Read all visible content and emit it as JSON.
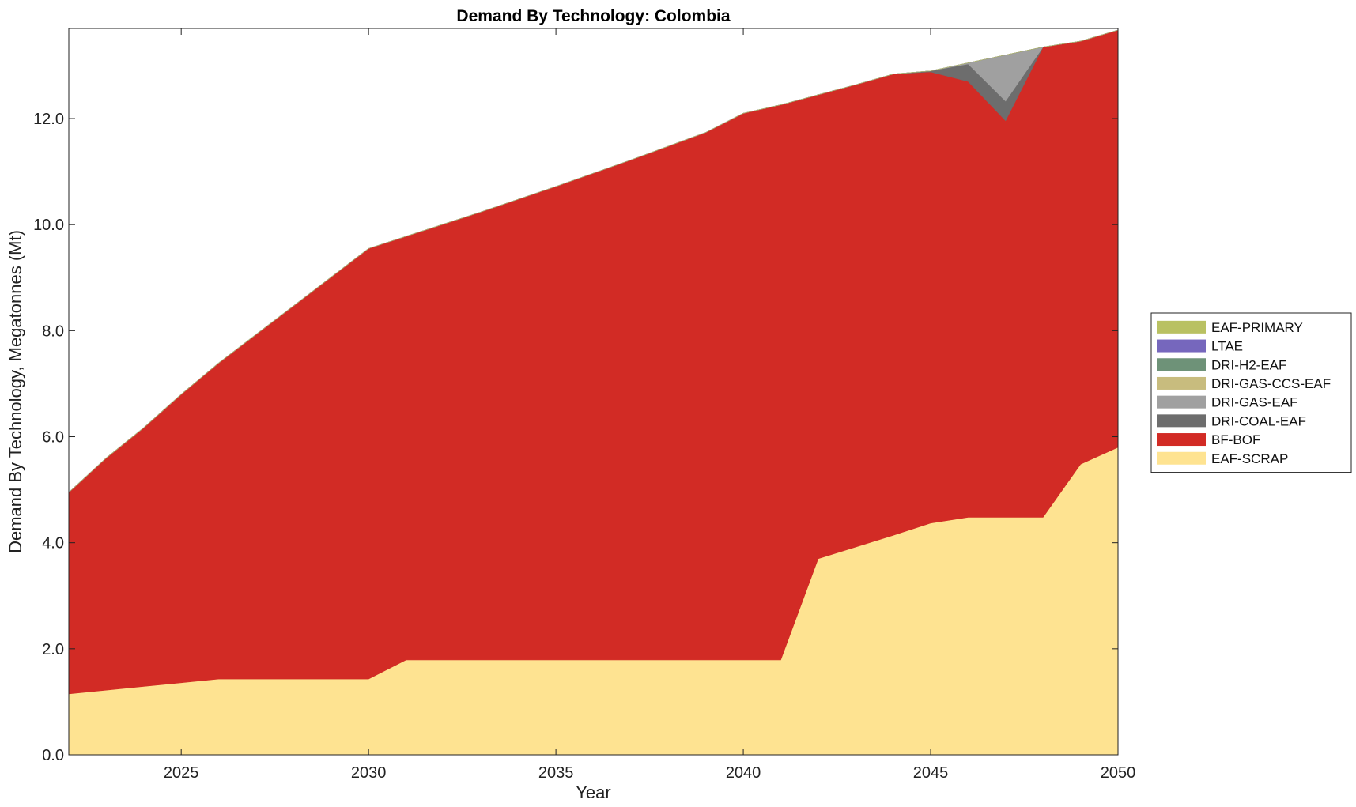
{
  "chart_data": {
    "type": "area",
    "stacked": true,
    "title": "Demand By Technology: Colombia",
    "xlabel": "Year",
    "ylabel": "Demand By Technology, Megatonnes (Mt)",
    "xlim": [
      2022,
      2050
    ],
    "ylim": [
      0,
      13.7
    ],
    "xticks": [
      2025,
      2030,
      2035,
      2040,
      2045,
      2050
    ],
    "yticks": [
      0,
      2,
      4,
      6,
      8,
      10,
      12
    ],
    "ytick_labels": [
      "0.0",
      "2.0",
      "4.0",
      "6.0",
      "8.0",
      "10.0",
      "12.0"
    ],
    "grid": false,
    "legend_position": "right",
    "x": [
      2022,
      2023,
      2024,
      2025,
      2026,
      2027,
      2028,
      2029,
      2030,
      2031,
      2032,
      2033,
      2034,
      2035,
      2036,
      2037,
      2038,
      2039,
      2040,
      2041,
      2042,
      2043,
      2044,
      2045,
      2046,
      2047,
      2048,
      2049,
      2050
    ],
    "series": [
      {
        "name": "EAF-SCRAP",
        "color": "#FEE391",
        "values": [
          1.15,
          1.22,
          1.29,
          1.36,
          1.43,
          1.43,
          1.43,
          1.43,
          1.43,
          1.79,
          1.79,
          1.79,
          1.79,
          1.79,
          1.79,
          1.79,
          1.79,
          1.79,
          1.79,
          1.79,
          3.7,
          3.92,
          4.14,
          4.37,
          4.48,
          4.48,
          4.48,
          5.48,
          5.8
        ]
      },
      {
        "name": "BF-BOF",
        "color": "#D22B25",
        "values": [
          3.8,
          4.38,
          4.88,
          5.44,
          5.96,
          6.5,
          7.04,
          7.58,
          8.12,
          7.99,
          8.22,
          8.45,
          8.69,
          8.93,
          9.18,
          9.43,
          9.69,
          9.95,
          10.31,
          10.47,
          8.75,
          8.72,
          8.7,
          8.51,
          8.22,
          7.48,
          8.87,
          7.98,
          7.87
        ]
      },
      {
        "name": "DRI-COAL-EAF",
        "color": "#6D6D6D",
        "values": [
          0,
          0,
          0,
          0,
          0,
          0,
          0,
          0,
          0,
          0,
          0,
          0,
          0,
          0,
          0,
          0,
          0,
          0,
          0,
          0,
          0,
          0,
          0,
          0.02,
          0.33,
          0.37,
          0,
          0,
          0
        ]
      },
      {
        "name": "DRI-GAS-EAF",
        "color": "#A0A0A0",
        "values": [
          0,
          0,
          0,
          0,
          0,
          0,
          0,
          0,
          0,
          0,
          0,
          0,
          0,
          0,
          0,
          0,
          0,
          0,
          0,
          0,
          0,
          0,
          0,
          0,
          0.02,
          0.87,
          0,
          0,
          0
        ]
      },
      {
        "name": "DRI-GAS-CCS-EAF",
        "color": "#C8BC7E",
        "values": [
          0,
          0,
          0,
          0,
          0,
          0,
          0,
          0,
          0,
          0,
          0,
          0,
          0,
          0,
          0,
          0,
          0,
          0,
          0,
          0,
          0,
          0,
          0,
          0,
          0,
          0,
          0,
          0,
          0
        ]
      },
      {
        "name": "DRI-H2-EAF",
        "color": "#6E9278",
        "values": [
          0,
          0,
          0,
          0,
          0,
          0,
          0,
          0,
          0,
          0,
          0,
          0,
          0,
          0,
          0,
          0,
          0,
          0,
          0,
          0,
          0,
          0,
          0,
          0,
          0,
          0,
          0,
          0,
          0
        ]
      },
      {
        "name": "LTAE",
        "color": "#7667BD",
        "values": [
          0,
          0,
          0,
          0,
          0,
          0,
          0,
          0,
          0,
          0,
          0,
          0,
          0,
          0,
          0,
          0,
          0,
          0,
          0,
          0,
          0,
          0,
          0,
          0,
          0,
          0,
          0,
          0,
          0
        ]
      },
      {
        "name": "EAF-PRIMARY",
        "color": "#B9C162",
        "values": [
          0,
          0,
          0,
          0,
          0,
          0,
          0,
          0,
          0,
          0,
          0,
          0,
          0,
          0,
          0,
          0,
          0,
          0,
          0,
          0,
          0,
          0,
          0,
          0,
          0,
          0,
          0,
          0,
          0
        ]
      }
    ],
    "legend_order": [
      "EAF-PRIMARY",
      "LTAE",
      "DRI-H2-EAF",
      "DRI-GAS-CCS-EAF",
      "DRI-GAS-EAF",
      "DRI-COAL-EAF",
      "BF-BOF",
      "EAF-SCRAP"
    ]
  }
}
